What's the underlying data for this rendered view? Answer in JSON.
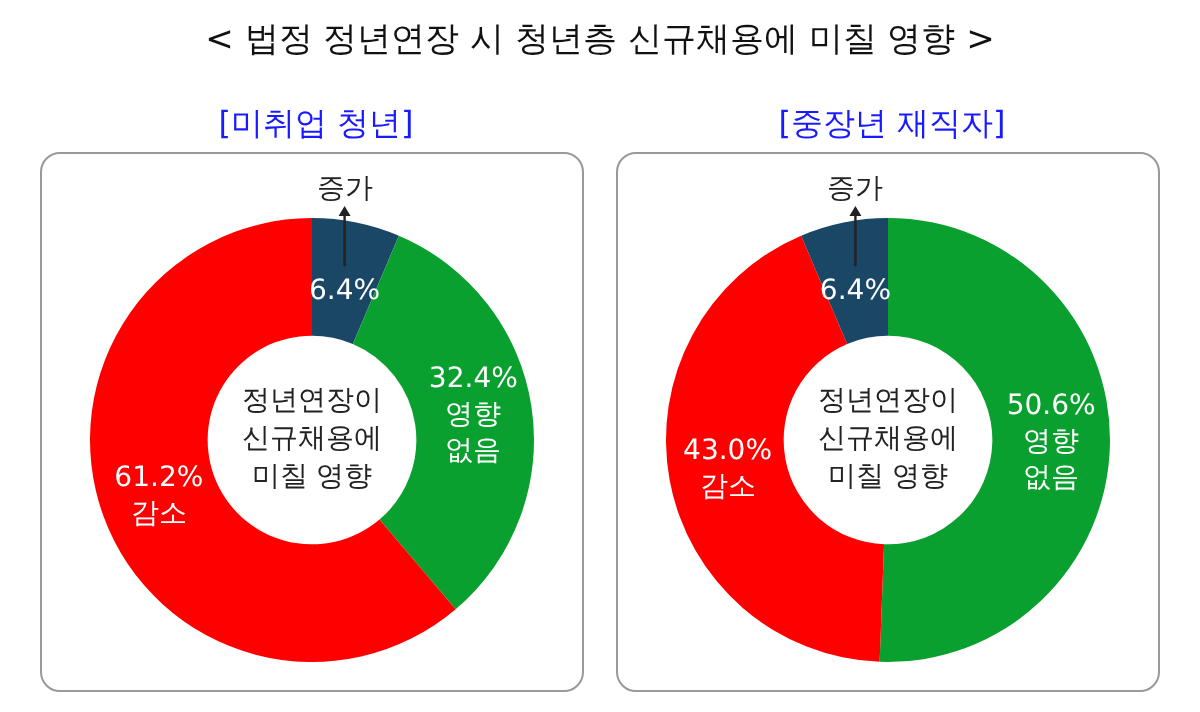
{
  "chart_data": [
    {
      "type": "donut",
      "title": "< 법정 정년연장 시 청년층 신규채용에 미칠 영향 >",
      "subtitle": "[미취업 청년]",
      "categories": [
        "증가",
        "영향 없음",
        "감소"
      ],
      "values": [
        6.4,
        32.4,
        61.2
      ],
      "colors": [
        "#1b4766",
        "#0aa02f",
        "#fe0000"
      ],
      "value_labels": [
        "6.4%",
        "32.4%",
        "61.2%"
      ],
      "annotations": [
        "정년연장이 신규채용에 미칠 영향"
      ],
      "legend": false
    },
    {
      "type": "donut",
      "subtitle": "[중장년 재직자]",
      "categories": [
        "영향 없음",
        "감소",
        "증가"
      ],
      "values": [
        50.6,
        43.0,
        6.4
      ],
      "colors": [
        "#0aa02f",
        "#fe0000",
        "#1b4766"
      ],
      "value_labels": [
        "50.6%",
        "43.0%",
        "6.4%"
      ],
      "annotations": [
        "정년연장이 신규채용에 미칠 영향"
      ],
      "legend": false
    }
  ]
}
